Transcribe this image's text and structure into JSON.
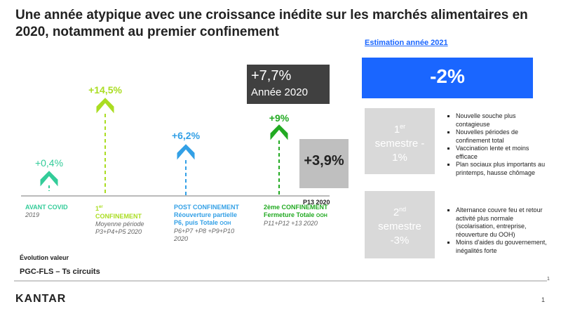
{
  "title": "Une année atypique avec une croissance inédite sur les marchés alimentaires en 2020, notamment au premier confinement",
  "periods": [
    {
      "value": "+0,4%",
      "label": "AVANT COVID",
      "sub": "2019"
    },
    {
      "value": "+14,5%",
      "label_num": "1",
      "label_sup": "er",
      "label": "CONFINEMENT",
      "sub": "Moyenne période P3+P4+P5 2020"
    },
    {
      "value": "+6,2%",
      "label": "POST CONFINEMENT Réouverture partielle P6, puis Totale",
      "label_small": "OOH",
      "sub": "P6+P7 +P8 +P9+P10 2020"
    },
    {
      "value": "+9%",
      "label": "2ème CONFINEMENT Fermeture Totale",
      "label_small": "OOH",
      "sub": "P11+P12 +13 2020"
    }
  ],
  "year_box": {
    "value": "+7,7%",
    "label": "Année 2020"
  },
  "p13_box": {
    "value": "+3,9%",
    "label": "P13 2020"
  },
  "estimate": {
    "title": "Estimation année 2021",
    "value": "-2%",
    "semesters": [
      {
        "num": "1",
        "sup": "er",
        "label": "semestre -",
        "value": "1%",
        "bullets": [
          "Nouvelle souche plus contagieuse",
          "Nouvelles périodes de confinement total",
          "Vaccination lente et moins efficace",
          "Plan sociaux plus importants au printemps, hausse chômage"
        ]
      },
      {
        "num": "2",
        "sup": "nd",
        "label": "semestre",
        "value": "-3%",
        "bullets": [
          "Alternance couvre feu et retour activité plus normale (scolarisation, entreprise, réouverture du OOH)",
          "Moins d'aides du gouvernement, inégalités forte"
        ]
      }
    ]
  },
  "footer": {
    "note": "Évolution valeur",
    "scope": "PGC-FLS – Ts circuits",
    "brand": "KANTAR",
    "page": "1",
    "small": "1"
  }
}
